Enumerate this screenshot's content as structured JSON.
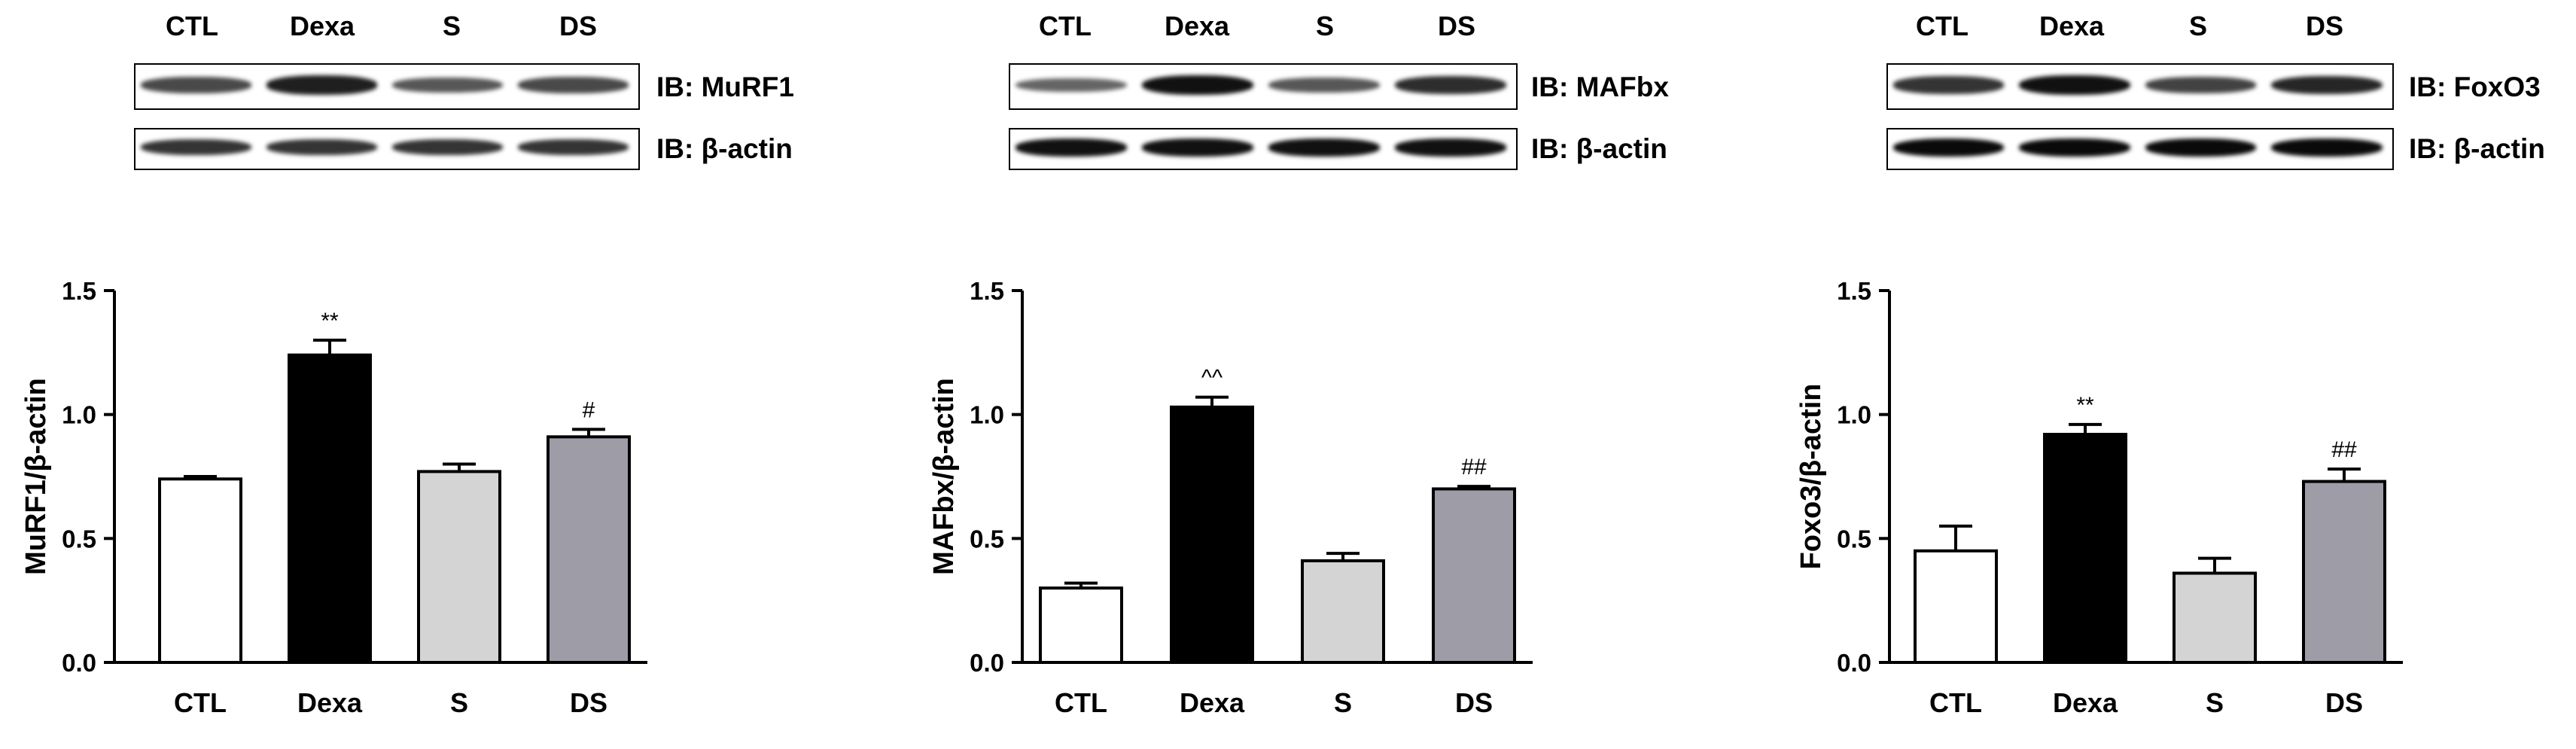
{
  "lanes": [
    "CTL",
    "Dexa",
    "S",
    "DS"
  ],
  "panels": [
    {
      "blot_target": "IB: MuRF1",
      "blot_loading": "IB: β-actin",
      "band_intensity_target": [
        0.55,
        0.85,
        0.45,
        0.55
      ],
      "band_intensity_loading": [
        0.7,
        0.7,
        0.7,
        0.7
      ],
      "chart": {
        "type": "bar",
        "ylabel": "MuRF1/β-actin",
        "categories": [
          "CTL",
          "Dexa",
          "S",
          "DS"
        ],
        "values": [
          0.74,
          1.24,
          0.77,
          0.91
        ],
        "errors": [
          0.01,
          0.06,
          0.03,
          0.03
        ],
        "annotations": [
          "",
          "**",
          "",
          "#"
        ],
        "ylim": [
          0,
          1.5
        ],
        "yticks": [
          "0.0",
          "0.5",
          "1.0",
          "1.5"
        ],
        "bar_colors": [
          "#ffffff",
          "#000000",
          "#d4d4d4",
          "#9e9ca6"
        ]
      }
    },
    {
      "blot_target": "IB: MAFbx",
      "blot_loading": "IB: β-actin",
      "band_intensity_target": [
        0.35,
        0.95,
        0.45,
        0.75
      ],
      "band_intensity_loading": [
        0.95,
        0.95,
        0.95,
        0.95
      ],
      "chart": {
        "type": "bar",
        "ylabel": "MAFbx/β-actin",
        "categories": [
          "CTL",
          "Dexa",
          "S",
          "DS"
        ],
        "values": [
          0.3,
          1.03,
          0.41,
          0.7
        ],
        "errors": [
          0.02,
          0.04,
          0.03,
          0.01
        ],
        "annotations": [
          "",
          "^^",
          "",
          "##"
        ],
        "ylim": [
          0,
          1.5
        ],
        "yticks": [
          "0.0",
          "0.5",
          "1.0",
          "1.5"
        ],
        "bar_colors": [
          "#ffffff",
          "#000000",
          "#d4d4d4",
          "#9e9ca6"
        ]
      }
    },
    {
      "blot_target": "IB: FoxO3",
      "blot_loading": "IB: β-actin",
      "band_intensity_target": [
        0.7,
        0.95,
        0.6,
        0.8
      ],
      "band_intensity_loading": [
        1.0,
        1.0,
        1.0,
        1.0
      ],
      "chart": {
        "type": "bar",
        "ylabel": "Foxo3/β-actin",
        "categories": [
          "CTL",
          "Dexa",
          "S",
          "DS"
        ],
        "values": [
          0.45,
          0.92,
          0.36,
          0.73
        ],
        "errors": [
          0.1,
          0.04,
          0.06,
          0.05
        ],
        "annotations": [
          "",
          "**",
          "",
          "##"
        ],
        "ylim": [
          0,
          1.5
        ],
        "yticks": [
          "0.0",
          "0.5",
          "1.0",
          "1.5"
        ],
        "bar_colors": [
          "#ffffff",
          "#000000",
          "#d4d4d4",
          "#9e9ca6"
        ]
      }
    }
  ]
}
